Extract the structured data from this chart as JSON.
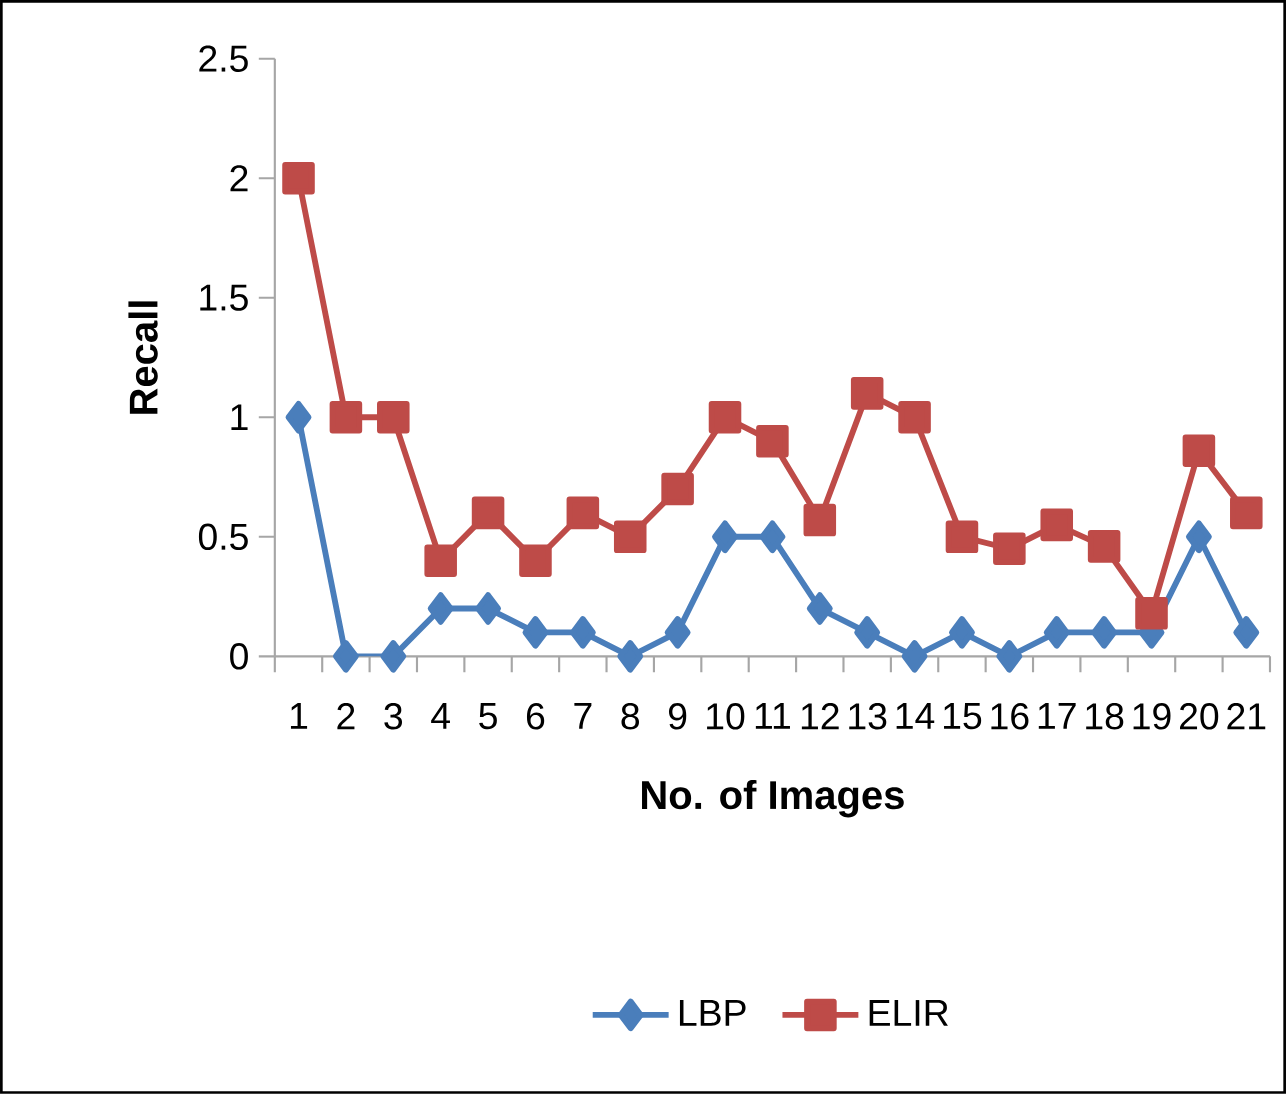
{
  "chart_data": {
    "type": "line",
    "xlabel": "No. of Images",
    "ylabel": "Recall",
    "categories": [
      "1",
      "2",
      "3",
      "4",
      "5",
      "6",
      "7",
      "8",
      "9",
      "10",
      "11",
      "12",
      "13",
      "14",
      "15",
      "16",
      "17",
      "18",
      "19",
      "20",
      "21"
    ],
    "series": [
      {
        "name": "LBP",
        "color": "#4a7ebb",
        "marker": "diamond",
        "values": [
          1,
          0,
          0,
          0.2,
          0.2,
          0.1,
          0.1,
          0,
          0.1,
          0.5,
          0.5,
          0.2,
          0.1,
          0,
          0.1,
          0,
          0.1,
          0.1,
          0.1,
          0.5,
          0.1
        ]
      },
      {
        "name": "ELIR",
        "color": "#be4b48",
        "marker": "square",
        "values": [
          2,
          1,
          1,
          0.4,
          0.6,
          0.4,
          0.6,
          0.5,
          0.7,
          1,
          0.9,
          0.57,
          1.1,
          1,
          0.5,
          0.45,
          0.55,
          0.46,
          0.18,
          0.86,
          0.6
        ]
      }
    ],
    "ylim": [
      0,
      2.5
    ],
    "yticks": [
      0,
      0.5,
      1,
      1.5,
      2,
      2.5
    ],
    "grid": false,
    "legend": "bottom",
    "line_style": "solid"
  }
}
